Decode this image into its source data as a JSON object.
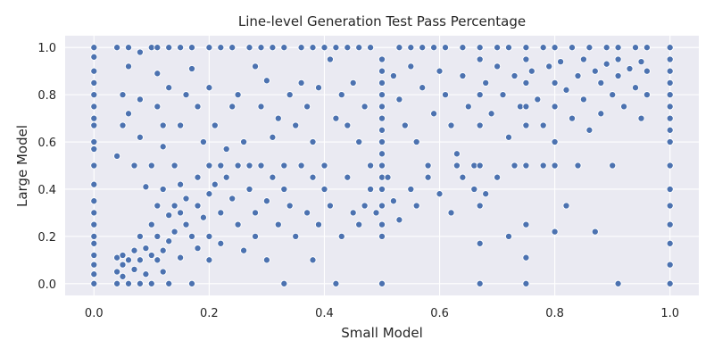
{
  "chart_data": {
    "type": "scatter",
    "title": "Line-level Generation Test Pass Percentage",
    "xlabel": "Small Model",
    "ylabel": "Large Model",
    "xlim": [
      -0.05,
      1.05
    ],
    "ylim": [
      -0.05,
      1.05
    ],
    "xticks": [
      "0.0",
      "0.2",
      "0.4",
      "0.6",
      "0.8",
      "1.0"
    ],
    "yticks": [
      "0.0",
      "0.2",
      "0.4",
      "0.6",
      "0.8",
      "1.0"
    ],
    "grid": true,
    "style": "seaborn-darkgrid",
    "marker_color": "#4c72b0",
    "background_color": "#eaeaf2",
    "points": [
      [
        0.0,
        1.0
      ],
      [
        0.0,
        0.96
      ],
      [
        0.0,
        0.9
      ],
      [
        0.0,
        0.85
      ],
      [
        0.0,
        0.8
      ],
      [
        0.0,
        0.75
      ],
      [
        0.0,
        0.7
      ],
      [
        0.0,
        0.67
      ],
      [
        0.0,
        0.6
      ],
      [
        0.0,
        0.57
      ],
      [
        0.0,
        0.5
      ],
      [
        0.0,
        0.42
      ],
      [
        0.0,
        0.35
      ],
      [
        0.0,
        0.3
      ],
      [
        0.0,
        0.25
      ],
      [
        0.0,
        0.2
      ],
      [
        0.0,
        0.17
      ],
      [
        0.0,
        0.12
      ],
      [
        0.0,
        0.08
      ],
      [
        0.0,
        0.04
      ],
      [
        0.0,
        0.0
      ],
      [
        0.04,
        1.0
      ],
      [
        0.06,
        1.0
      ],
      [
        0.08,
        0.98
      ],
      [
        0.1,
        1.0
      ],
      [
        0.11,
        1.0
      ],
      [
        0.13,
        1.0
      ],
      [
        0.15,
        1.0
      ],
      [
        0.17,
        1.0
      ],
      [
        0.2,
        1.0
      ],
      [
        0.22,
        1.0
      ],
      [
        0.24,
        1.0
      ],
      [
        0.27,
        1.0
      ],
      [
        0.29,
        1.0
      ],
      [
        0.31,
        1.0
      ],
      [
        0.33,
        1.0
      ],
      [
        0.36,
        1.0
      ],
      [
        0.38,
        1.0
      ],
      [
        0.4,
        1.0
      ],
      [
        0.42,
        1.0
      ],
      [
        0.44,
        1.0
      ],
      [
        0.46,
        1.0
      ],
      [
        0.48,
        1.0
      ],
      [
        0.53,
        1.0
      ],
      [
        0.55,
        1.0
      ],
      [
        0.57,
        1.0
      ],
      [
        0.59,
        1.0
      ],
      [
        0.61,
        1.0
      ],
      [
        0.64,
        1.0
      ],
      [
        0.67,
        1.0
      ],
      [
        0.7,
        1.0
      ],
      [
        0.72,
        1.0
      ],
      [
        0.75,
        1.0
      ],
      [
        0.78,
        1.0
      ],
      [
        0.8,
        1.0
      ],
      [
        0.83,
        1.0
      ],
      [
        0.86,
        1.0
      ],
      [
        0.89,
        1.0
      ],
      [
        0.91,
        1.0
      ],
      [
        0.94,
        1.0
      ],
      [
        0.96,
        1.0
      ],
      [
        0.04,
        0.54
      ],
      [
        0.05,
        0.8
      ],
      [
        0.05,
        0.67
      ],
      [
        0.06,
        0.72
      ],
      [
        0.06,
        0.92
      ],
      [
        0.07,
        0.5
      ],
      [
        0.08,
        0.78
      ],
      [
        0.08,
        0.62
      ],
      [
        0.09,
        0.41
      ],
      [
        0.1,
        0.5
      ],
      [
        0.11,
        0.89
      ],
      [
        0.11,
        0.75
      ],
      [
        0.12,
        0.67
      ],
      [
        0.12,
        0.58
      ],
      [
        0.13,
        0.83
      ],
      [
        0.14,
        0.5
      ],
      [
        0.15,
        0.67
      ],
      [
        0.16,
        0.8
      ],
      [
        0.17,
        0.91
      ],
      [
        0.18,
        0.75
      ],
      [
        0.19,
        0.6
      ],
      [
        0.2,
        0.83
      ],
      [
        0.21,
        0.67
      ],
      [
        0.22,
        0.5
      ],
      [
        0.23,
        0.57
      ],
      [
        0.24,
        0.75
      ],
      [
        0.25,
        0.8
      ],
      [
        0.26,
        0.6
      ],
      [
        0.27,
        0.5
      ],
      [
        0.28,
        0.92
      ],
      [
        0.29,
        0.75
      ],
      [
        0.3,
        0.86
      ],
      [
        0.31,
        0.62
      ],
      [
        0.32,
        0.7
      ],
      [
        0.33,
        0.5
      ],
      [
        0.34,
        0.8
      ],
      [
        0.35,
        0.67
      ],
      [
        0.36,
        0.85
      ],
      [
        0.37,
        0.75
      ],
      [
        0.38,
        0.6
      ],
      [
        0.39,
        0.83
      ],
      [
        0.4,
        0.5
      ],
      [
        0.41,
        0.95
      ],
      [
        0.42,
        0.7
      ],
      [
        0.43,
        0.8
      ],
      [
        0.44,
        0.67
      ],
      [
        0.45,
        0.85
      ],
      [
        0.46,
        0.6
      ],
      [
        0.47,
        0.75
      ],
      [
        0.48,
        0.5
      ],
      [
        0.5,
        0.95
      ],
      [
        0.5,
        0.9
      ],
      [
        0.5,
        0.85
      ],
      [
        0.5,
        0.8
      ],
      [
        0.5,
        0.75
      ],
      [
        0.5,
        0.7
      ],
      [
        0.5,
        0.65
      ],
      [
        0.5,
        0.6
      ],
      [
        0.5,
        0.55
      ],
      [
        0.5,
        0.5
      ],
      [
        0.5,
        0.45
      ],
      [
        0.5,
        0.4
      ],
      [
        0.5,
        0.33
      ],
      [
        0.5,
        0.25
      ],
      [
        0.5,
        0.2
      ],
      [
        0.5,
        0.0
      ],
      [
        0.52,
        0.88
      ],
      [
        0.53,
        0.78
      ],
      [
        0.54,
        0.67
      ],
      [
        0.55,
        0.92
      ],
      [
        0.56,
        0.6
      ],
      [
        0.57,
        0.83
      ],
      [
        0.58,
        0.5
      ],
      [
        0.59,
        0.72
      ],
      [
        0.6,
        0.9
      ],
      [
        0.61,
        0.8
      ],
      [
        0.62,
        0.67
      ],
      [
        0.63,
        0.55
      ],
      [
        0.64,
        0.88
      ],
      [
        0.65,
        0.75
      ],
      [
        0.66,
        0.5
      ],
      [
        0.67,
        0.95
      ],
      [
        0.67,
        0.8
      ],
      [
        0.67,
        0.67
      ],
      [
        0.67,
        0.5
      ],
      [
        0.67,
        0.33
      ],
      [
        0.67,
        0.17
      ],
      [
        0.67,
        0.0
      ],
      [
        0.68,
        0.85
      ],
      [
        0.69,
        0.72
      ],
      [
        0.7,
        0.92
      ],
      [
        0.71,
        0.8
      ],
      [
        0.72,
        0.62
      ],
      [
        0.73,
        0.88
      ],
      [
        0.74,
        0.75
      ],
      [
        0.75,
        0.95
      ],
      [
        0.75,
        0.85
      ],
      [
        0.75,
        0.75
      ],
      [
        0.75,
        0.67
      ],
      [
        0.75,
        0.5
      ],
      [
        0.75,
        0.25
      ],
      [
        0.75,
        0.11
      ],
      [
        0.75,
        0.0
      ],
      [
        0.76,
        0.9
      ],
      [
        0.77,
        0.78
      ],
      [
        0.78,
        0.67
      ],
      [
        0.79,
        0.92
      ],
      [
        0.8,
        0.85
      ],
      [
        0.8,
        0.75
      ],
      [
        0.8,
        0.6
      ],
      [
        0.8,
        0.5
      ],
      [
        0.81,
        0.94
      ],
      [
        0.82,
        0.82
      ],
      [
        0.83,
        0.7
      ],
      [
        0.84,
        0.88
      ],
      [
        0.85,
        0.95
      ],
      [
        0.85,
        0.78
      ],
      [
        0.86,
        0.65
      ],
      [
        0.87,
        0.9
      ],
      [
        0.88,
        0.85
      ],
      [
        0.88,
        0.72
      ],
      [
        0.89,
        0.93
      ],
      [
        0.9,
        0.8
      ],
      [
        0.9,
        0.5
      ],
      [
        0.91,
        0.95
      ],
      [
        0.91,
        0.88
      ],
      [
        0.92,
        0.75
      ],
      [
        0.93,
        0.91
      ],
      [
        0.94,
        0.83
      ],
      [
        0.95,
        0.94
      ],
      [
        0.95,
        0.7
      ],
      [
        0.96,
        0.9
      ],
      [
        0.96,
        0.8
      ],
      [
        0.04,
        0.11
      ],
      [
        0.04,
        0.05
      ],
      [
        0.04,
        0.0
      ],
      [
        0.05,
        0.12
      ],
      [
        0.05,
        0.08
      ],
      [
        0.05,
        0.03
      ],
      [
        0.06,
        0.1
      ],
      [
        0.06,
        0.0
      ],
      [
        0.07,
        0.14
      ],
      [
        0.07,
        0.06
      ],
      [
        0.08,
        0.2
      ],
      [
        0.08,
        0.1
      ],
      [
        0.08,
        0.0
      ],
      [
        0.09,
        0.15
      ],
      [
        0.09,
        0.04
      ],
      [
        0.1,
        0.25
      ],
      [
        0.1,
        0.12
      ],
      [
        0.1,
        0.0
      ],
      [
        0.11,
        0.33
      ],
      [
        0.11,
        0.2
      ],
      [
        0.11,
        0.1
      ],
      [
        0.12,
        0.4
      ],
      [
        0.12,
        0.14
      ],
      [
        0.12,
        0.05
      ],
      [
        0.13,
        0.29
      ],
      [
        0.13,
        0.18
      ],
      [
        0.13,
        0.0
      ],
      [
        0.14,
        0.33
      ],
      [
        0.14,
        0.22
      ],
      [
        0.15,
        0.42
      ],
      [
        0.15,
        0.3
      ],
      [
        0.15,
        0.11
      ],
      [
        0.16,
        0.25
      ],
      [
        0.16,
        0.36
      ],
      [
        0.17,
        0.2
      ],
      [
        0.17,
        0.0
      ],
      [
        0.18,
        0.45
      ],
      [
        0.18,
        0.33
      ],
      [
        0.18,
        0.15
      ],
      [
        0.19,
        0.28
      ],
      [
        0.2,
        0.5
      ],
      [
        0.2,
        0.38
      ],
      [
        0.2,
        0.2
      ],
      [
        0.2,
        0.1
      ],
      [
        0.21,
        0.42
      ],
      [
        0.22,
        0.3
      ],
      [
        0.22,
        0.17
      ],
      [
        0.23,
        0.45
      ],
      [
        0.24,
        0.36
      ],
      [
        0.25,
        0.25
      ],
      [
        0.25,
        0.5
      ],
      [
        0.26,
        0.14
      ],
      [
        0.27,
        0.4
      ],
      [
        0.28,
        0.3
      ],
      [
        0.28,
        0.2
      ],
      [
        0.29,
        0.5
      ],
      [
        0.3,
        0.35
      ],
      [
        0.3,
        0.1
      ],
      [
        0.31,
        0.45
      ],
      [
        0.32,
        0.25
      ],
      [
        0.33,
        0.4
      ],
      [
        0.33,
        0.0
      ],
      [
        0.34,
        0.33
      ],
      [
        0.35,
        0.2
      ],
      [
        0.36,
        0.5
      ],
      [
        0.37,
        0.3
      ],
      [
        0.38,
        0.45
      ],
      [
        0.38,
        0.1
      ],
      [
        0.39,
        0.25
      ],
      [
        0.4,
        0.4
      ],
      [
        0.4,
        0.5
      ],
      [
        0.41,
        0.33
      ],
      [
        0.42,
        0.0
      ],
      [
        0.43,
        0.2
      ],
      [
        0.44,
        0.45
      ],
      [
        0.45,
        0.3
      ],
      [
        0.46,
        0.25
      ],
      [
        0.47,
        0.33
      ],
      [
        0.48,
        0.4
      ],
      [
        0.49,
        0.3
      ],
      [
        0.51,
        0.45
      ],
      [
        0.52,
        0.35
      ],
      [
        0.53,
        0.27
      ],
      [
        0.55,
        0.4
      ],
      [
        0.56,
        0.33
      ],
      [
        0.58,
        0.45
      ],
      [
        0.6,
        0.38
      ],
      [
        0.62,
        0.3
      ],
      [
        0.63,
        0.5
      ],
      [
        0.64,
        0.45
      ],
      [
        0.66,
        0.4
      ],
      [
        0.68,
        0.38
      ],
      [
        0.7,
        0.45
      ],
      [
        0.72,
        0.2
      ],
      [
        0.73,
        0.5
      ],
      [
        0.78,
        0.5
      ],
      [
        0.8,
        0.22
      ],
      [
        0.82,
        0.33
      ],
      [
        0.84,
        0.5
      ],
      [
        0.87,
        0.22
      ],
      [
        0.91,
        0.0
      ],
      [
        1.0,
        1.0
      ],
      [
        1.0,
        0.95
      ],
      [
        1.0,
        0.9
      ],
      [
        1.0,
        0.85
      ],
      [
        1.0,
        0.8
      ],
      [
        1.0,
        0.75
      ],
      [
        1.0,
        0.7
      ],
      [
        1.0,
        0.65
      ],
      [
        1.0,
        0.6
      ],
      [
        1.0,
        0.5
      ],
      [
        1.0,
        0.4
      ],
      [
        1.0,
        0.33
      ],
      [
        1.0,
        0.25
      ],
      [
        1.0,
        0.17
      ],
      [
        1.0,
        0.08
      ],
      [
        1.0,
        0.0
      ]
    ]
  }
}
